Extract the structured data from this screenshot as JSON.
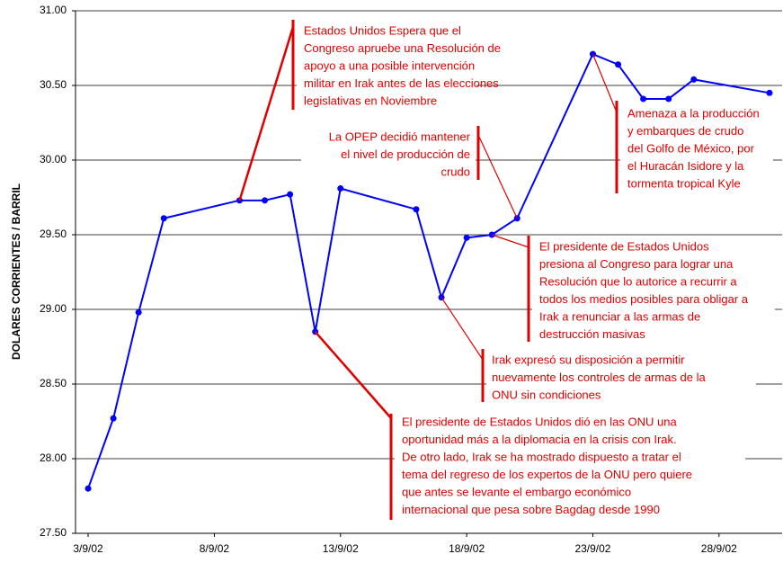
{
  "chart_data": {
    "type": "line",
    "ylabel": "DOLARES CORRIENTES / BARRIL",
    "x": [
      "3/9/02",
      "4/9/02",
      "5/9/02",
      "6/9/02",
      "9/9/02",
      "10/9/02",
      "11/9/02",
      "12/9/02",
      "13/9/02",
      "16/9/02",
      "17/9/02",
      "18/9/02",
      "19/9/02",
      "20/9/02",
      "23/9/02",
      "24/9/02",
      "25/9/02",
      "26/9/02",
      "27/9/02",
      "30/9/02"
    ],
    "series": [
      {
        "color": "#0000ff",
        "values": [
          27.8,
          28.27,
          28.98,
          29.61,
          29.73,
          29.73,
          29.77,
          28.85,
          29.81,
          29.67,
          29.08,
          29.48,
          29.5,
          29.61,
          30.71,
          30.64,
          30.41,
          30.41,
          30.54,
          30.45
        ]
      }
    ],
    "xticks": [
      "3/9/02",
      "8/9/02",
      "13/9/02",
      "18/9/02",
      "23/9/02",
      "28/9/02"
    ],
    "ylim": [
      27.5,
      31
    ],
    "yticks": [
      {
        "value": 27.5,
        "label": "27.50"
      },
      {
        "value": 28,
        "label": "28.00"
      },
      {
        "value": 28.5,
        "label": "28.50"
      },
      {
        "value": 29,
        "label": "29.00"
      },
      {
        "value": 29.5,
        "label": "29.50"
      },
      {
        "value": 30,
        "label": "30.00"
      },
      {
        "value": 30.5,
        "label": "30.50"
      },
      {
        "value": 31,
        "label": "31.00"
      }
    ],
    "grid": true,
    "annotation_color": "#e00000",
    "annotations": [
      {
        "lines": [
          "Estados Unidos Espera que el",
          "Congreso apruebe una Resolución de",
          "apoyo a una posible intervención",
          "militar en Irak antes de las elecciones",
          "legislativas en Noviembre"
        ]
      },
      {
        "lines": [
          "La OPEP decidió mantener",
          "el nivel de producción de",
          "crudo"
        ]
      },
      {
        "lines": [
          "Amenaza a la producción",
          "y embarques de crudo",
          "del Golfo de México, por",
          "el Huracán Isidore y la",
          "tormenta tropical Kyle"
        ]
      },
      {
        "lines": [
          "El presidente de Estados Unidos",
          "presiona al Congreso para lograr una",
          "Resolución que lo autorice a recurrir a",
          "todos los medios posibles para obligar a",
          "Irak a renunciar a las armas de",
          "destrucción masivas"
        ]
      },
      {
        "lines": [
          "Irak expresó su disposición a permitir",
          "nuevamente los controles de armas de la",
          "ONU sin condiciones"
        ]
      },
      {
        "lines": [
          "El presidente de Estados Unidos dió en las ONU una",
          "oportunidad más a la diplomacia en la crisis con Irak.",
          "De otro lado, Irak se ha mostrado dispuesto a tratar el",
          "tema del regreso de los expertos de la ONU pero quiere",
          "que antes se levante el embargo económico",
          "internacional que pesa sobre Bagdag desde 1990"
        ]
      }
    ]
  }
}
